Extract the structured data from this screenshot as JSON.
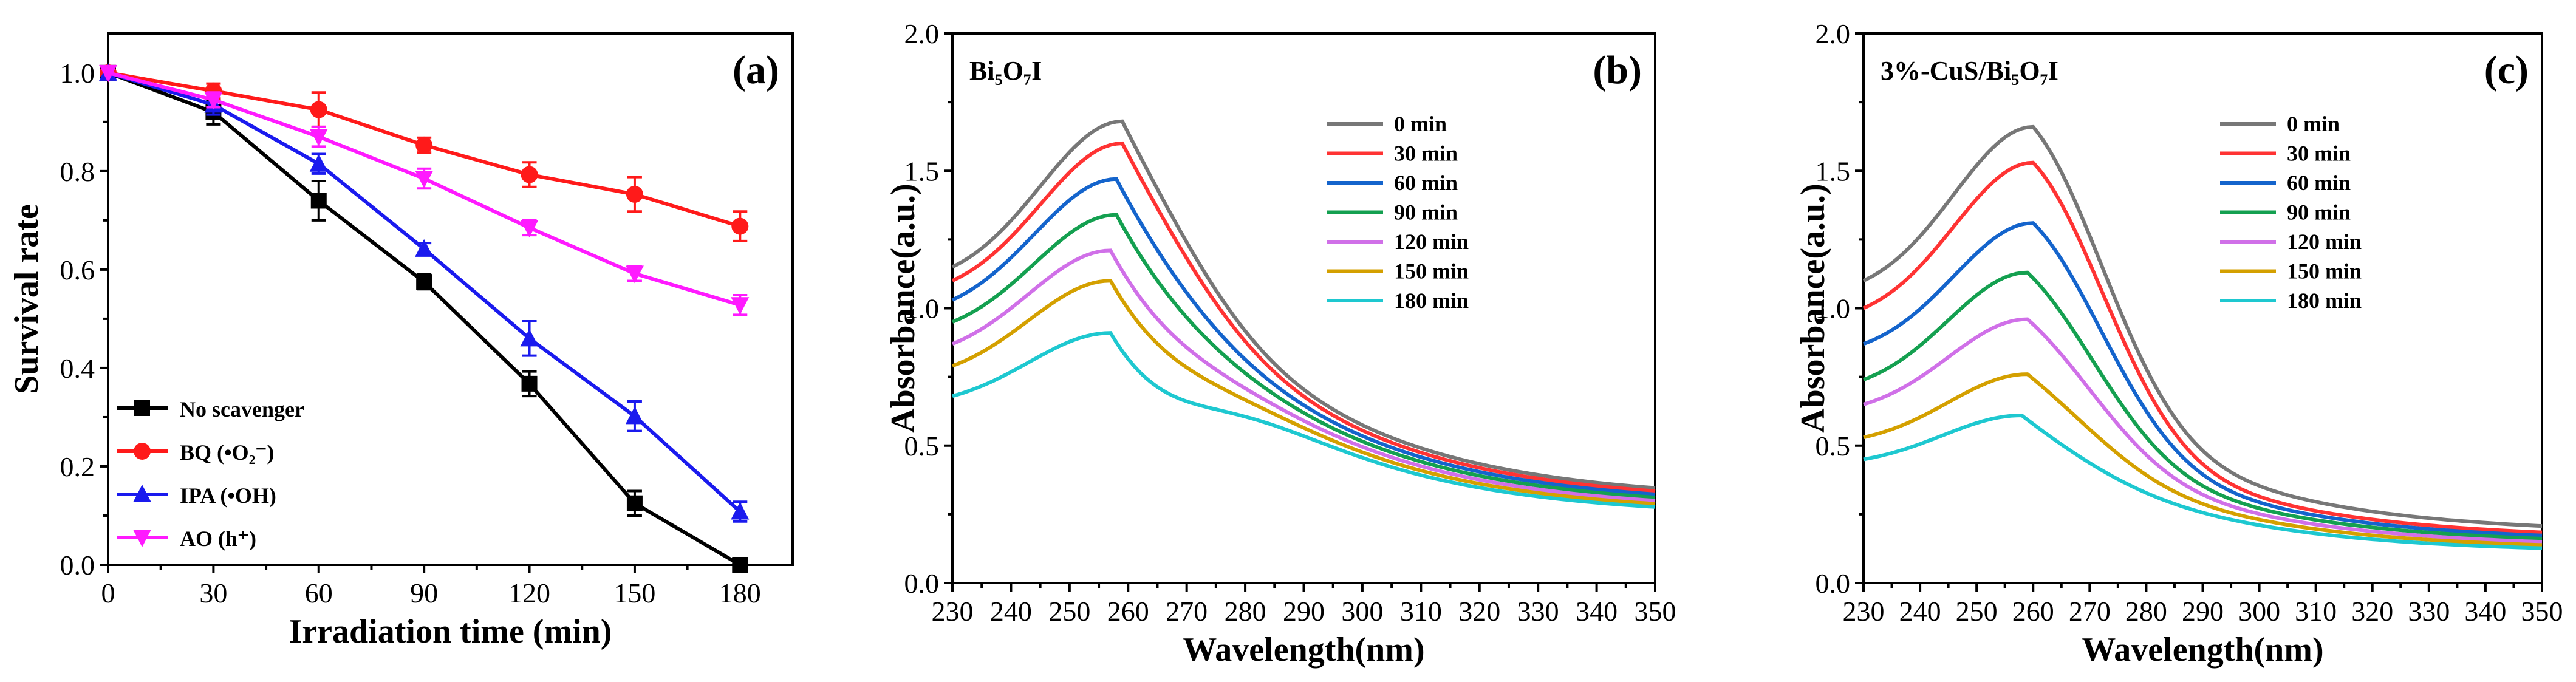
{
  "colors": {
    "series": [
      "#000000",
      "#ff1a1a",
      "#1a1aee",
      "#ff1aff"
    ],
    "times": [
      "#777777",
      "#ff3333",
      "#1464cc",
      "#14a050",
      "#d070e8",
      "#d4a000",
      "#1ec8d0"
    ]
  },
  "chart_data": [
    {
      "type": "line",
      "panel_label": "(a)",
      "xlabel": "Irradiation  time (min)",
      "ylabel": "Survival rate",
      "xlim": [
        0,
        195
      ],
      "ylim": [
        0,
        1.08
      ],
      "x": [
        0,
        30,
        60,
        90,
        120,
        150,
        180
      ],
      "x_ticks": [
        "0",
        "30",
        "60",
        "90",
        "120",
        "150",
        "180"
      ],
      "y_ticks": [
        "0.0",
        "0.2",
        "0.4",
        "0.6",
        "0.8",
        "1.0"
      ],
      "legend_position": "bottom-left",
      "series": [
        {
          "name": "No scavenger",
          "marker": "square",
          "values": [
            1.0,
            0.92,
            0.74,
            0.575,
            0.368,
            0.125,
            0.0
          ],
          "errors": [
            0.0,
            0.025,
            0.04,
            0.015,
            0.025,
            0.025,
            0.0
          ]
        },
        {
          "name": "BQ (•O₂⁻)",
          "marker": "circle",
          "values": [
            1.0,
            0.963,
            0.925,
            0.853,
            0.793,
            0.753,
            0.688
          ],
          "errors": [
            0.0,
            0.015,
            0.035,
            0.015,
            0.025,
            0.035,
            0.03
          ]
        },
        {
          "name": "IPA (•OH)",
          "marker": "triangle-up",
          "values": [
            1.0,
            0.935,
            0.815,
            0.642,
            0.46,
            0.302,
            0.108
          ],
          "errors": [
            0.0,
            0.02,
            0.02,
            0.012,
            0.035,
            0.03,
            0.02
          ]
        },
        {
          "name": "AO (h⁺)",
          "marker": "triangle-down",
          "values": [
            1.0,
            0.945,
            0.87,
            0.785,
            0.685,
            0.592,
            0.528
          ],
          "errors": [
            0.0,
            0.015,
            0.02,
            0.02,
            0.015,
            0.015,
            0.02
          ]
        }
      ]
    },
    {
      "type": "line",
      "panel_label": "(b)",
      "sample_label": "Bi₅O₇I",
      "xlabel": "Wavelength(nm)",
      "ylabel": "Absorbance(a.u.)",
      "xlim": [
        230,
        350
      ],
      "ylim": [
        0.0,
        2.0
      ],
      "x_ticks": [
        "230",
        "240",
        "250",
        "260",
        "270",
        "280",
        "290",
        "300",
        "310",
        "320",
        "330",
        "340",
        "350"
      ],
      "y_ticks": [
        "0.0",
        "0.5",
        "1.0",
        "1.5",
        "2.0"
      ],
      "legend_position": "top-right",
      "series": [
        {
          "name": "0 min",
          "start": 1.15,
          "peak": 1.68,
          "peak_x": 259,
          "end": 0.3
        },
        {
          "name": "30 min",
          "start": 1.1,
          "peak": 1.6,
          "peak_x": 259,
          "end": 0.29
        },
        {
          "name": "60 min",
          "start": 1.03,
          "peak": 1.47,
          "peak_x": 258,
          "end": 0.28
        },
        {
          "name": "90 min",
          "start": 0.95,
          "peak": 1.34,
          "peak_x": 258,
          "end": 0.27
        },
        {
          "name": "120 min",
          "start": 0.87,
          "peak": 1.21,
          "peak_x": 257,
          "end": 0.26
        },
        {
          "name": "150 min",
          "start": 0.79,
          "peak": 1.1,
          "peak_x": 257,
          "end": 0.25
        },
        {
          "name": "180 min",
          "start": 0.68,
          "peak": 0.91,
          "peak_x": 257,
          "end": 0.24
        }
      ]
    },
    {
      "type": "line",
      "panel_label": "(c)",
      "sample_label": "3%-CuS/Bi₅O₇I",
      "xlabel": "Wavelength(nm)",
      "ylabel": "Absorbance(a.u.)",
      "xlim": [
        230,
        350
      ],
      "ylim": [
        0.0,
        2.0
      ],
      "x_ticks": [
        "230",
        "240",
        "250",
        "260",
        "270",
        "280",
        "290",
        "300",
        "310",
        "320",
        "330",
        "340",
        "350"
      ],
      "y_ticks": [
        "0.0",
        "0.5",
        "1.0",
        "1.5",
        "2.0"
      ],
      "legend_position": "top-right",
      "series": [
        {
          "name": "0 min",
          "start": 1.1,
          "peak": 1.66,
          "peak_x": 260,
          "end": 0.18
        },
        {
          "name": "30 min",
          "start": 1.0,
          "peak": 1.53,
          "peak_x": 260,
          "end": 0.16
        },
        {
          "name": "60 min",
          "start": 0.87,
          "peak": 1.31,
          "peak_x": 260,
          "end": 0.15
        },
        {
          "name": "90 min",
          "start": 0.74,
          "peak": 1.13,
          "peak_x": 259,
          "end": 0.14
        },
        {
          "name": "120 min",
          "start": 0.65,
          "peak": 0.96,
          "peak_x": 259,
          "end": 0.13
        },
        {
          "name": "150 min",
          "start": 0.53,
          "peak": 0.76,
          "peak_x": 259,
          "end": 0.12
        },
        {
          "name": "180 min",
          "start": 0.45,
          "peak": 0.61,
          "peak_x": 258,
          "end": 0.11
        }
      ]
    }
  ]
}
